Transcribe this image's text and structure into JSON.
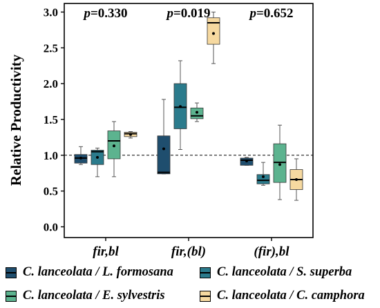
{
  "chart_data": {
    "type": "box",
    "ylabel": "Relative Productivity",
    "xlabel": "",
    "ylim": [
      -0.15,
      3.12
    ],
    "yticks": [
      "0.0",
      "0.5",
      "1.0",
      "1.5",
      "2.0",
      "2.5",
      "3.0"
    ],
    "reference_line": {
      "y": 1.0,
      "style": "dashed"
    },
    "grid": false,
    "legend_position": "bottom",
    "categories": [
      "fir,bl",
      "fir,(bl)",
      "(fir),bl"
    ],
    "annotations": [
      {
        "category": "fir,bl",
        "prefix": "p",
        "text": "=0.330"
      },
      {
        "category": "fir,(bl)",
        "prefix": "p",
        "text": "=0.019"
      },
      {
        "category": "(fir),bl",
        "prefix": "p",
        "text": "=0.652"
      }
    ],
    "series": [
      {
        "name": "C. lanceolata / L. formosana",
        "color": "#1f4e6e",
        "boxes": [
          {
            "min": 0.87,
            "q1": 0.89,
            "median": 0.96,
            "q3": 1.01,
            "max": 1.12,
            "mean": 0.96
          },
          {
            "min": 0.74,
            "q1": 0.74,
            "median": 0.76,
            "q3": 1.27,
            "max": 1.78,
            "mean": 1.09
          },
          {
            "min": 0.86,
            "q1": 0.86,
            "median": 0.93,
            "q3": 0.96,
            "max": 0.97,
            "mean": 0.92
          }
        ]
      },
      {
        "name": "C. lanceolata / S. superba",
        "color": "#2b7b8c",
        "boxes": [
          {
            "min": 0.7,
            "q1": 0.87,
            "median": 1.05,
            "q3": 1.07,
            "max": 1.1,
            "mean": 0.97
          },
          {
            "min": 1.08,
            "q1": 1.37,
            "median": 1.67,
            "q3": 2.0,
            "max": 2.32,
            "mean": 1.68
          },
          {
            "min": 0.58,
            "q1": 0.6,
            "median": 0.65,
            "q3": 0.73,
            "max": 0.9,
            "mean": 0.7
          }
        ]
      },
      {
        "name": "C. lanceolata / E. sylvestris",
        "color": "#5cb38f",
        "boxes": [
          {
            "min": 0.7,
            "q1": 0.95,
            "median": 1.2,
            "q3": 1.34,
            "max": 1.47,
            "mean": 1.13
          },
          {
            "min": 1.47,
            "q1": 1.51,
            "median": 1.55,
            "q3": 1.66,
            "max": 1.73,
            "mean": 1.6
          },
          {
            "min": 0.38,
            "q1": 0.62,
            "median": 0.9,
            "q3": 1.16,
            "max": 1.42,
            "mean": 0.87
          }
        ]
      },
      {
        "name": "C. lanceolata / C. camphora",
        "color": "#f6d9a0",
        "boxes": [
          {
            "min": 1.24,
            "q1": 1.26,
            "median": 1.3,
            "q3": 1.32,
            "max": 1.33,
            "mean": 1.29
          },
          {
            "min": 2.28,
            "q1": 2.55,
            "median": 2.85,
            "q3": 2.92,
            "max": 3.0,
            "mean": 2.7
          },
          {
            "min": 0.37,
            "q1": 0.52,
            "median": 0.66,
            "q3": 0.8,
            "max": 0.95,
            "mean": 0.66
          }
        ]
      }
    ]
  }
}
